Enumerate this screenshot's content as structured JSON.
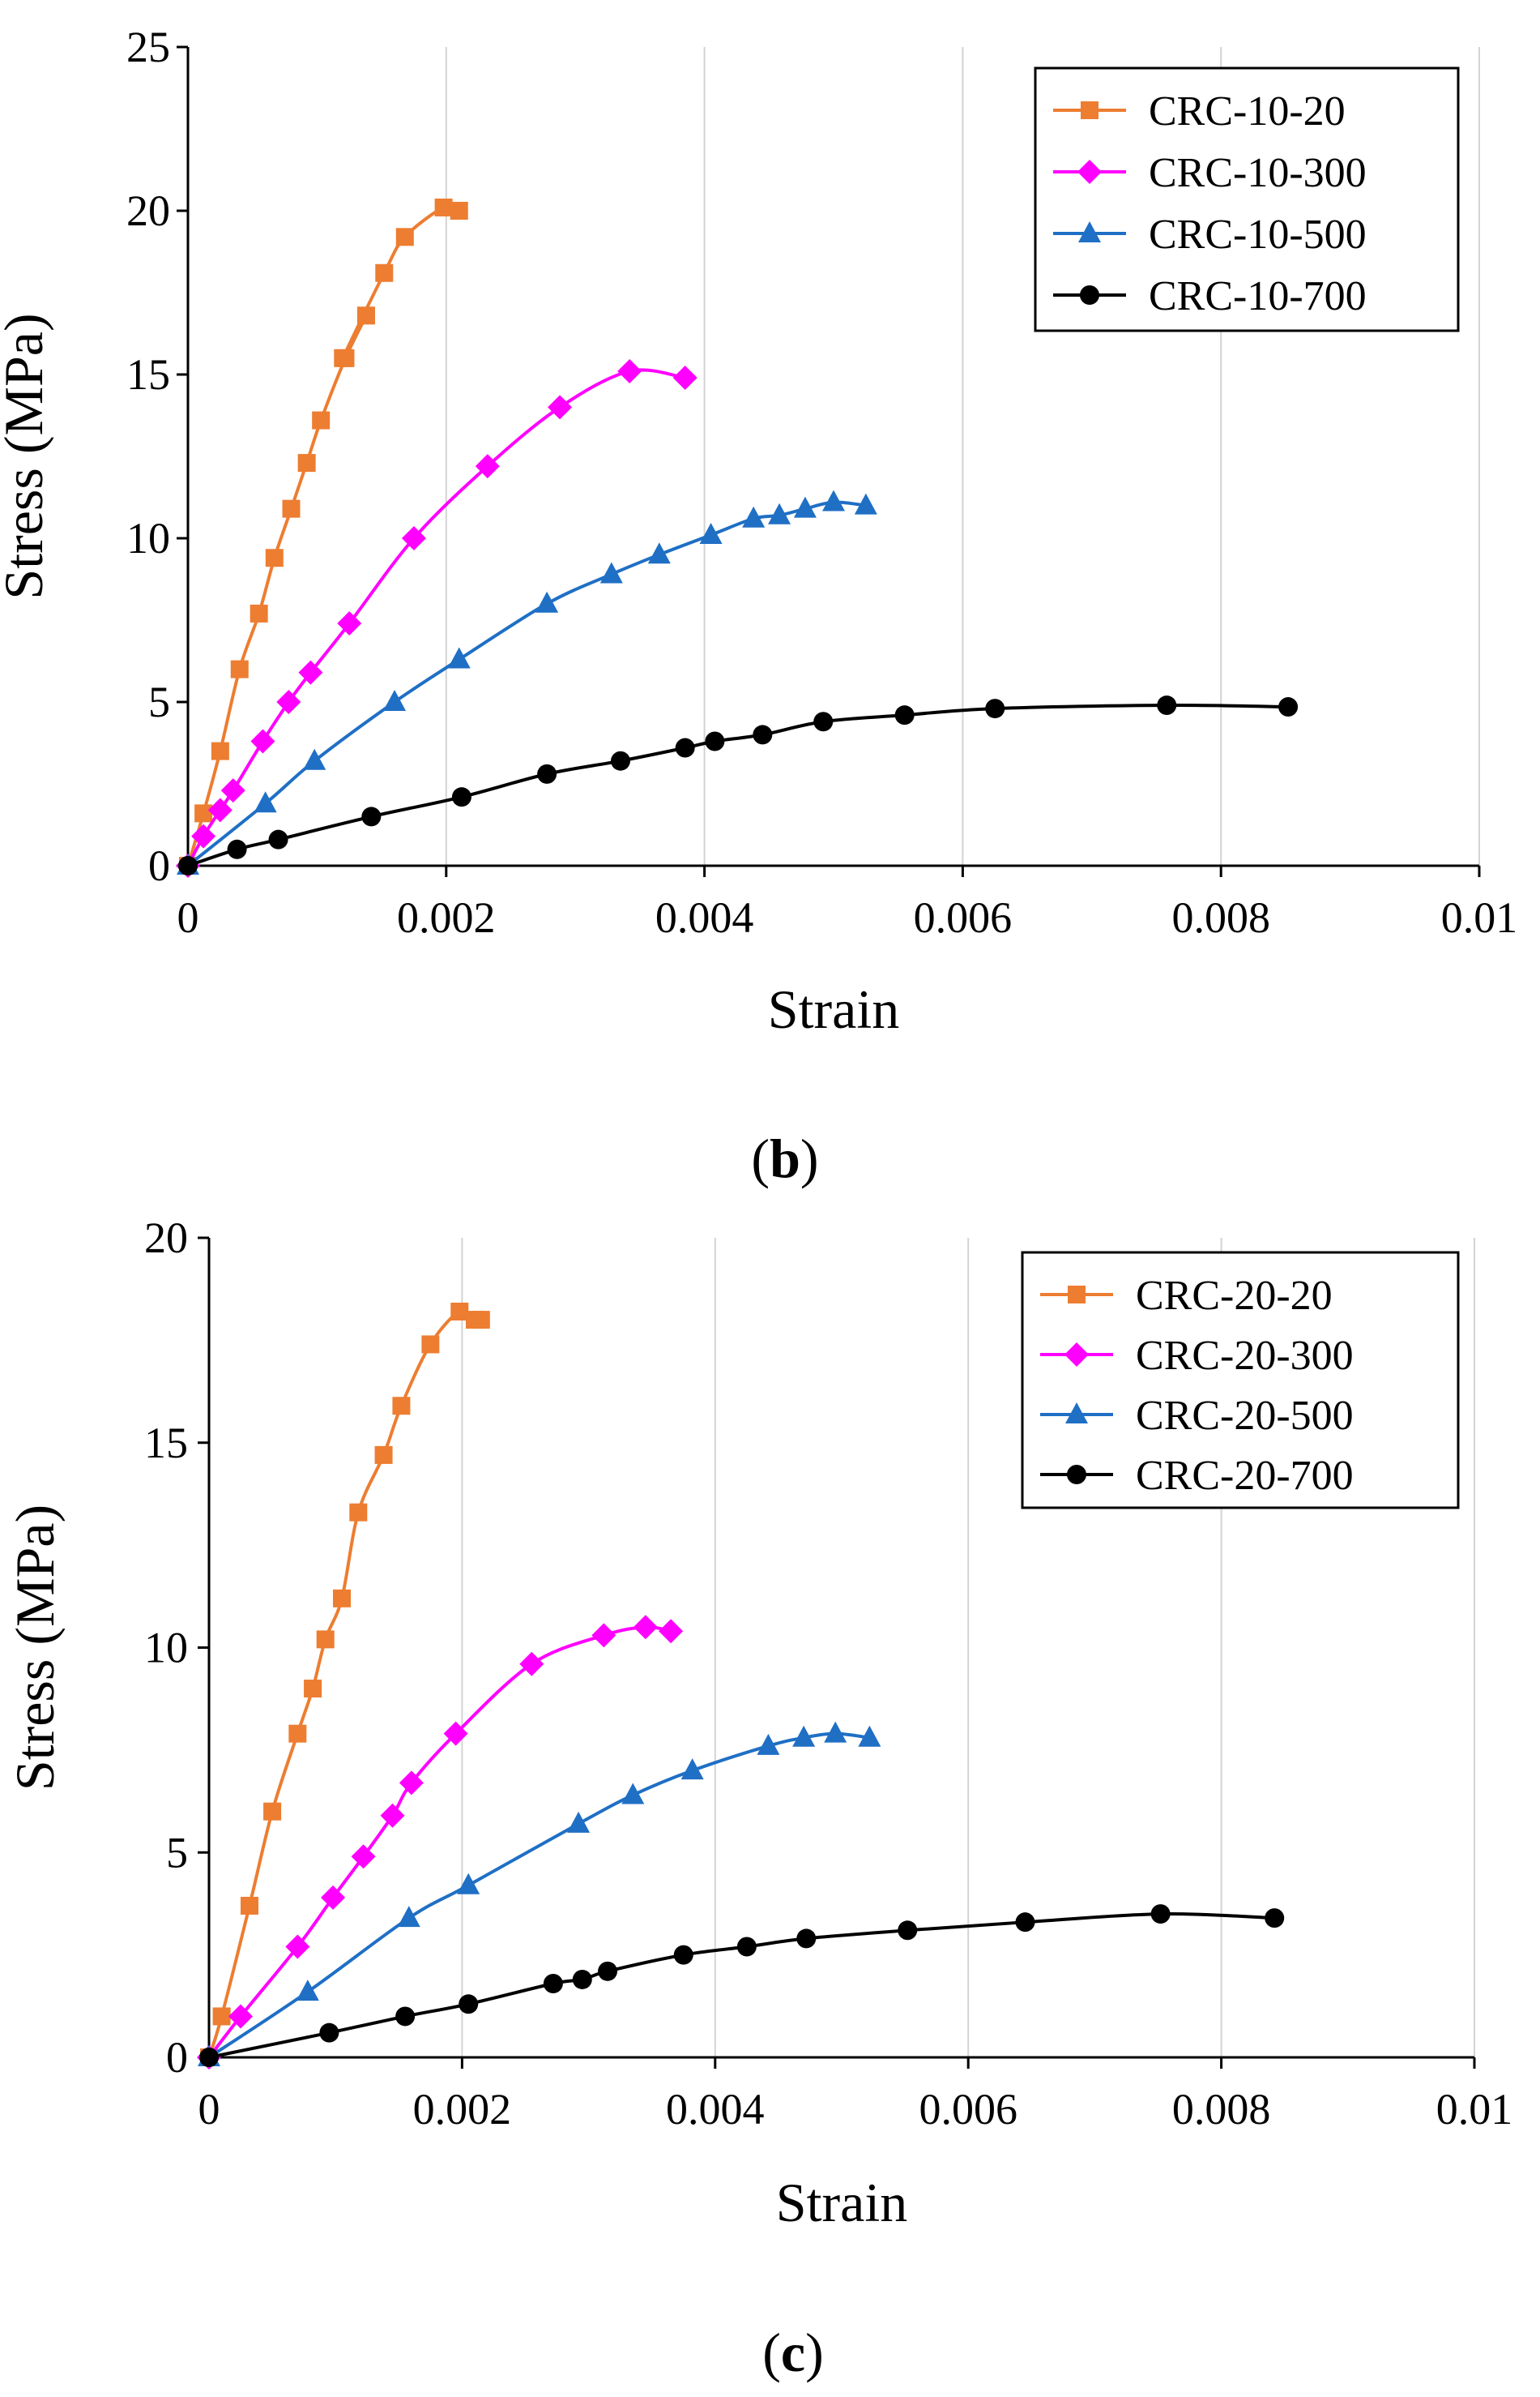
{
  "chart_data": [
    {
      "type": "line",
      "panel_label": "b",
      "xlabel": "Strain",
      "ylabel": "Stress (MPa)",
      "xlim": [
        0,
        0.01
      ],
      "ylim": [
        0,
        25
      ],
      "x_ticks": [
        "0",
        "0.002",
        "0.004",
        "0.006",
        "0.008",
        "0.01"
      ],
      "y_ticks": [
        "0",
        "5",
        "10",
        "15",
        "20",
        "25"
      ],
      "grid": "vertical",
      "legend_position": "top-right",
      "series": [
        {
          "name": "CRC-10-20",
          "color": "#ED7D31",
          "marker": "square",
          "x": [
            0,
            0.00012,
            0.00025,
            0.0004,
            0.00055,
            0.00067,
            0.0008,
            0.00092,
            0.00103,
            0.00122,
            0.00138,
            0.0012,
            0.00152,
            0.00168,
            0.00198,
            0.0021
          ],
          "y": [
            0,
            1.6,
            3.5,
            6.0,
            7.7,
            9.4,
            10.9,
            12.3,
            13.6,
            15.5,
            16.8,
            15.5,
            18.1,
            19.2,
            20.1,
            20.0
          ]
        },
        {
          "name": "CRC-10-300",
          "color": "#FF00FF",
          "marker": "diamond",
          "x": [
            0,
            0.00012,
            0.00025,
            0.00035,
            0.00058,
            0.00078,
            0.00095,
            0.00125,
            0.00175,
            0.00232,
            0.00288,
            0.00342,
            0.00385
          ],
          "y": [
            0,
            0.9,
            1.7,
            2.3,
            3.8,
            5.0,
            5.9,
            7.4,
            10.0,
            12.2,
            14.0,
            15.1,
            14.9
          ]
        },
        {
          "name": "CRC-10-500",
          "color": "#1F6FC5",
          "marker": "triangle",
          "x": [
            0,
            0.0006,
            0.00098,
            0.0016,
            0.0021,
            0.00278,
            0.00328,
            0.00365,
            0.00405,
            0.00438,
            0.00458,
            0.00478,
            0.005,
            0.00525
          ],
          "y": [
            0,
            1.9,
            3.2,
            5.0,
            6.3,
            8.0,
            8.9,
            9.5,
            10.1,
            10.6,
            10.7,
            10.9,
            11.1,
            11.0
          ]
        },
        {
          "name": "CRC-10-700",
          "color": "#000000",
          "marker": "circle",
          "x": [
            0,
            0.00038,
            0.0007,
            0.00142,
            0.00212,
            0.00278,
            0.00335,
            0.00385,
            0.00408,
            0.00445,
            0.00492,
            0.00555,
            0.00625,
            0.00758,
            0.00852
          ],
          "y": [
            0,
            0.5,
            0.8,
            1.5,
            2.1,
            2.8,
            3.2,
            3.6,
            3.8,
            4.0,
            4.4,
            4.6,
            4.8,
            4.9,
            4.85
          ]
        }
      ]
    },
    {
      "type": "line",
      "panel_label": "c",
      "xlabel": "Strain",
      "ylabel": "Stress (MPa)",
      "xlim": [
        0,
        0.01
      ],
      "ylim": [
        0,
        20
      ],
      "x_ticks": [
        "0",
        "0.002",
        "0.004",
        "0.006",
        "0.008",
        "0.01"
      ],
      "y_ticks": [
        "0",
        "5",
        "10",
        "15",
        "20"
      ],
      "grid": "vertical",
      "legend_position": "top-right",
      "series": [
        {
          "name": "CRC-20-20",
          "color": "#ED7D31",
          "marker": "square",
          "x": [
            0,
            0.0001,
            0.00032,
            0.0005,
            0.0007,
            0.00082,
            0.00092,
            0.00105,
            0.00118,
            0.00138,
            0.00152,
            0.00175,
            0.00198,
            0.0021,
            0.00215
          ],
          "y": [
            0,
            1.0,
            3.7,
            6.0,
            7.9,
            9.0,
            10.2,
            11.2,
            13.3,
            14.7,
            15.9,
            17.4,
            18.2,
            18.0,
            18.0
          ]
        },
        {
          "name": "CRC-20-300",
          "color": "#FF00FF",
          "marker": "diamond",
          "x": [
            0,
            0.00025,
            0.0007,
            0.00098,
            0.00122,
            0.00145,
            0.0016,
            0.00195,
            0.00255,
            0.00312,
            0.00345,
            0.00365
          ],
          "y": [
            0,
            1.0,
            2.7,
            3.9,
            4.9,
            5.9,
            6.7,
            7.9,
            9.6,
            10.3,
            10.5,
            10.4
          ]
        },
        {
          "name": "CRC-20-500",
          "color": "#1F6FC5",
          "marker": "triangle",
          "x": [
            0,
            0.00078,
            0.00158,
            0.00205,
            0.00292,
            0.00335,
            0.00382,
            0.00442,
            0.0047,
            0.00495,
            0.00522
          ],
          "y": [
            0,
            1.6,
            3.4,
            4.2,
            5.7,
            6.4,
            7.0,
            7.6,
            7.8,
            7.9,
            7.8
          ]
        },
        {
          "name": "CRC-20-700",
          "color": "#000000",
          "marker": "circle",
          "x": [
            0,
            0.00095,
            0.00155,
            0.00205,
            0.00272,
            0.00295,
            0.00315,
            0.00375,
            0.00425,
            0.00472,
            0.00552,
            0.00645,
            0.00752,
            0.00842
          ],
          "y": [
            0,
            0.6,
            1.0,
            1.3,
            1.8,
            1.9,
            2.1,
            2.5,
            2.7,
            2.9,
            3.1,
            3.3,
            3.5,
            3.4
          ]
        }
      ]
    }
  ]
}
